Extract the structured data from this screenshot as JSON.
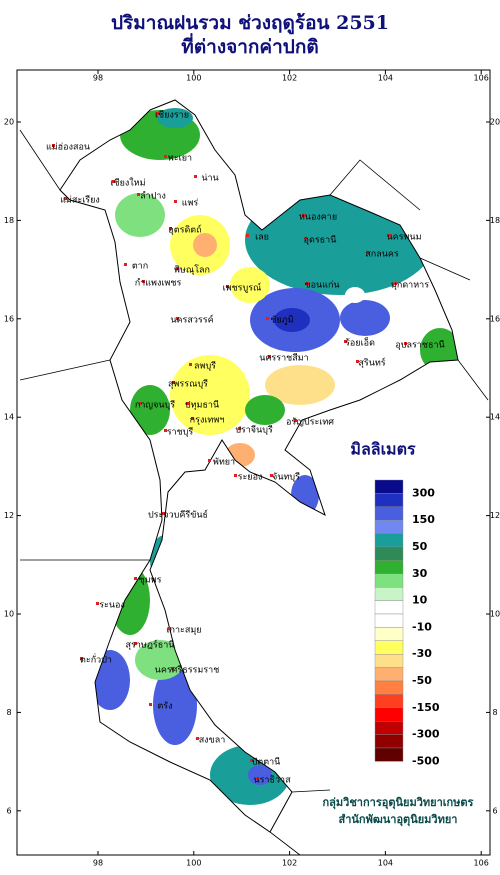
{
  "title": [
    "ปริมาณฝนรวม ช่วงฤดูร้อน 2551",
    "ที่ต่างจากค่าปกติ"
  ],
  "map": {
    "lon_ticks": [
      98,
      100,
      102,
      104,
      106
    ],
    "lat_ticks": [
      6,
      8,
      10,
      12,
      14,
      16,
      18,
      20
    ],
    "places": [
      "เชียงราย",
      "แม่ฮ่องสอน",
      "เชียงใหม่",
      "พะเยา",
      "น่าน",
      "ลำปาง",
      "แพร่",
      "แม่สะเรียง",
      "อุตรดิตถ์",
      "เลย",
      "หนองคาย",
      "อุดรธานี",
      "นครพนม",
      "สกลนคร",
      "มุกดาหาร",
      "ตาก",
      "พิษณุโลก",
      "กำแพงเพชร",
      "เพชรบูรณ์",
      "ขอนแก่น",
      "ชัยภูมิ",
      "นครสวรรค์",
      "ร้อยเอ็ด",
      "อุบลราชธานี",
      "ลพบุรี",
      "นครราชสีมา",
      "สุรินทร์",
      "สุพรรณบุรี",
      "กาญจนบุรี",
      "ปทุมธานี",
      "กรุงเทพฯ",
      "ปราจีนบุรี",
      "อรัญประเทศ",
      "ราชบุรี",
      "พัทยา",
      "ระยอง",
      "จันทบุรี",
      "ประจวบคีรีขันธ์",
      "ชุมพร",
      "ระนอง",
      "สุราษฎร์ธานี",
      "เกาะสมุย",
      "ตะกั่วป่า",
      "นครศรีธรรมราช",
      "ตรัง",
      "สงขลา",
      "ปัตตานี",
      "นราธิวาส"
    ]
  },
  "legend": {
    "title": "มิลลิเมตร",
    "labels": [
      300,
      150,
      50,
      30,
      10,
      -10,
      -30,
      -50,
      -150,
      -300,
      -500
    ],
    "colors": [
      "#0a0a8c",
      "#1f2fbf",
      "#4a5ee0",
      "#7088f0",
      "#1a9e9a",
      "#2e8b57",
      "#30b030",
      "#7ee07e",
      "#c8f5c8",
      "#ffffff",
      "#ffffff",
      "#ffffc8",
      "#ffff60",
      "#ffe08a",
      "#ffb070",
      "#ff8040",
      "#ff4020",
      "#ff0000",
      "#c00000",
      "#900000",
      "#600000"
    ]
  },
  "credits": [
    "กลุ่มวิชาการอุตุนิยมวิทยาเกษตร",
    "สำนักพัฒนาอุตุนิยมวิทยา"
  ]
}
